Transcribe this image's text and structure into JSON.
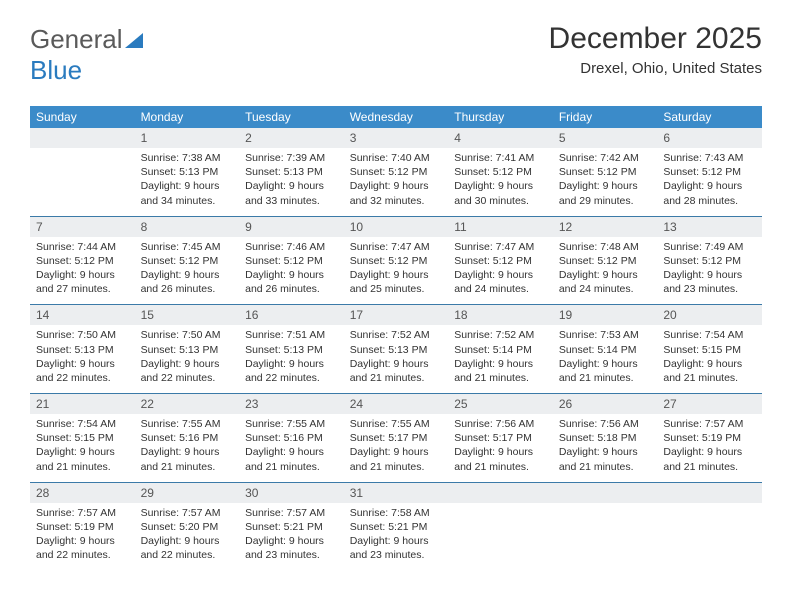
{
  "logo": {
    "text_a": "General",
    "text_b": "Blue"
  },
  "title": {
    "month": "December 2025",
    "location": "Drexel, Ohio, United States"
  },
  "colors": {
    "header_bg": "#3b8bc9",
    "header_fg": "#ffffff",
    "daynum_bg": "#eceef0",
    "border": "#3b7aa8",
    "text": "#333333",
    "logo_gray": "#5a5a5a",
    "logo_blue": "#2a7bbf"
  },
  "day_headers": [
    "Sunday",
    "Monday",
    "Tuesday",
    "Wednesday",
    "Thursday",
    "Friday",
    "Saturday"
  ],
  "weeks": [
    [
      null,
      {
        "n": "1",
        "sr": "7:38 AM",
        "ss": "5:13 PM",
        "dl": "9 hours and 34 minutes."
      },
      {
        "n": "2",
        "sr": "7:39 AM",
        "ss": "5:13 PM",
        "dl": "9 hours and 33 minutes."
      },
      {
        "n": "3",
        "sr": "7:40 AM",
        "ss": "5:12 PM",
        "dl": "9 hours and 32 minutes."
      },
      {
        "n": "4",
        "sr": "7:41 AM",
        "ss": "5:12 PM",
        "dl": "9 hours and 30 minutes."
      },
      {
        "n": "5",
        "sr": "7:42 AM",
        "ss": "5:12 PM",
        "dl": "9 hours and 29 minutes."
      },
      {
        "n": "6",
        "sr": "7:43 AM",
        "ss": "5:12 PM",
        "dl": "9 hours and 28 minutes."
      }
    ],
    [
      {
        "n": "7",
        "sr": "7:44 AM",
        "ss": "5:12 PM",
        "dl": "9 hours and 27 minutes."
      },
      {
        "n": "8",
        "sr": "7:45 AM",
        "ss": "5:12 PM",
        "dl": "9 hours and 26 minutes."
      },
      {
        "n": "9",
        "sr": "7:46 AM",
        "ss": "5:12 PM",
        "dl": "9 hours and 26 minutes."
      },
      {
        "n": "10",
        "sr": "7:47 AM",
        "ss": "5:12 PM",
        "dl": "9 hours and 25 minutes."
      },
      {
        "n": "11",
        "sr": "7:47 AM",
        "ss": "5:12 PM",
        "dl": "9 hours and 24 minutes."
      },
      {
        "n": "12",
        "sr": "7:48 AM",
        "ss": "5:12 PM",
        "dl": "9 hours and 24 minutes."
      },
      {
        "n": "13",
        "sr": "7:49 AM",
        "ss": "5:12 PM",
        "dl": "9 hours and 23 minutes."
      }
    ],
    [
      {
        "n": "14",
        "sr": "7:50 AM",
        "ss": "5:13 PM",
        "dl": "9 hours and 22 minutes."
      },
      {
        "n": "15",
        "sr": "7:50 AM",
        "ss": "5:13 PM",
        "dl": "9 hours and 22 minutes."
      },
      {
        "n": "16",
        "sr": "7:51 AM",
        "ss": "5:13 PM",
        "dl": "9 hours and 22 minutes."
      },
      {
        "n": "17",
        "sr": "7:52 AM",
        "ss": "5:13 PM",
        "dl": "9 hours and 21 minutes."
      },
      {
        "n": "18",
        "sr": "7:52 AM",
        "ss": "5:14 PM",
        "dl": "9 hours and 21 minutes."
      },
      {
        "n": "19",
        "sr": "7:53 AM",
        "ss": "5:14 PM",
        "dl": "9 hours and 21 minutes."
      },
      {
        "n": "20",
        "sr": "7:54 AM",
        "ss": "5:15 PM",
        "dl": "9 hours and 21 minutes."
      }
    ],
    [
      {
        "n": "21",
        "sr": "7:54 AM",
        "ss": "5:15 PM",
        "dl": "9 hours and 21 minutes."
      },
      {
        "n": "22",
        "sr": "7:55 AM",
        "ss": "5:16 PM",
        "dl": "9 hours and 21 minutes."
      },
      {
        "n": "23",
        "sr": "7:55 AM",
        "ss": "5:16 PM",
        "dl": "9 hours and 21 minutes."
      },
      {
        "n": "24",
        "sr": "7:55 AM",
        "ss": "5:17 PM",
        "dl": "9 hours and 21 minutes."
      },
      {
        "n": "25",
        "sr": "7:56 AM",
        "ss": "5:17 PM",
        "dl": "9 hours and 21 minutes."
      },
      {
        "n": "26",
        "sr": "7:56 AM",
        "ss": "5:18 PM",
        "dl": "9 hours and 21 minutes."
      },
      {
        "n": "27",
        "sr": "7:57 AM",
        "ss": "5:19 PM",
        "dl": "9 hours and 21 minutes."
      }
    ],
    [
      {
        "n": "28",
        "sr": "7:57 AM",
        "ss": "5:19 PM",
        "dl": "9 hours and 22 minutes."
      },
      {
        "n": "29",
        "sr": "7:57 AM",
        "ss": "5:20 PM",
        "dl": "9 hours and 22 minutes."
      },
      {
        "n": "30",
        "sr": "7:57 AM",
        "ss": "5:21 PM",
        "dl": "9 hours and 23 minutes."
      },
      {
        "n": "31",
        "sr": "7:58 AM",
        "ss": "5:21 PM",
        "dl": "9 hours and 23 minutes."
      },
      null,
      null,
      null
    ]
  ],
  "labels": {
    "sunrise": "Sunrise: ",
    "sunset": "Sunset: ",
    "daylight": "Daylight: "
  }
}
